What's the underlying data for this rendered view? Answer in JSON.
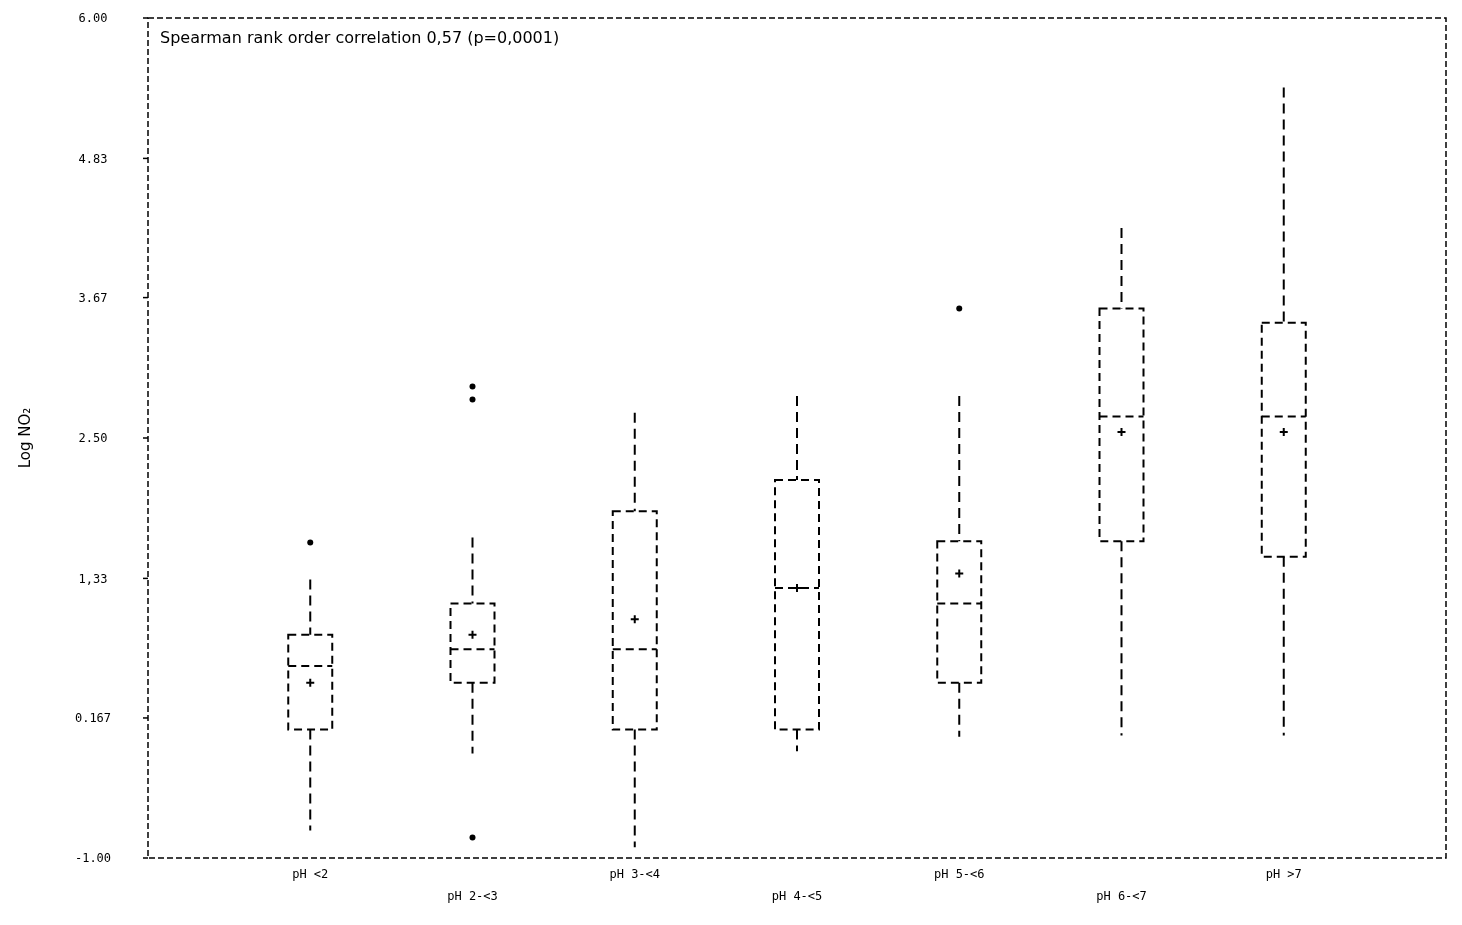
{
  "chart_data": {
    "type": "box",
    "ylabel": "Log NO₂",
    "annotations": [
      "Spearman rank order correlation 0,57 (p=0,0001)"
    ],
    "categories": [
      "pH <2",
      "pH 2-<3",
      "pH 3-<4",
      "pH 4-<5",
      "pH 5-<6",
      "pH 6-<7",
      "pH >7"
    ],
    "ylim": [
      -1,
      6
    ],
    "yticks": [
      {
        "value": -1,
        "label": "-1.00"
      },
      {
        "value": 0.167,
        "label": "0.167"
      },
      {
        "value": 1.33,
        "label": "1,33"
      },
      {
        "value": 2.5,
        "label": "2.50"
      },
      {
        "value": 3.67,
        "label": "3.67"
      },
      {
        "value": 4.83,
        "label": "4.83"
      },
      {
        "value": 6,
        "label": "6.00"
      }
    ],
    "boxes": [
      {
        "low": -0.77,
        "q1": 0.07,
        "median": 0.6,
        "q3": 0.86,
        "high": 1.32,
        "mean": 0.46,
        "outliers": [
          1.63
        ]
      },
      {
        "low": -0.13,
        "q1": 0.46,
        "median": 0.74,
        "q3": 1.12,
        "high": 1.67,
        "mean": 0.86,
        "outliers": [
          2.93,
          2.82,
          -0.83
        ]
      },
      {
        "low": -0.91,
        "q1": 0.07,
        "median": 0.74,
        "q3": 1.89,
        "high": 2.71,
        "mean": 0.99
      },
      {
        "low": -0.11,
        "q1": 0.07,
        "median": 1.25,
        "q3": 2.15,
        "high": 2.85,
        "mean": 1.25
      },
      {
        "low": 0.01,
        "q1": 0.46,
        "median": 1.12,
        "q3": 1.64,
        "high": 2.85,
        "mean": 1.37,
        "outliers": [
          3.58
        ]
      },
      {
        "low": 0.02,
        "q1": 1.64,
        "median": 2.68,
        "q3": 3.58,
        "high": 4.25,
        "mean": 2.55
      },
      {
        "low": 0.02,
        "q1": 1.51,
        "median": 2.68,
        "q3": 3.46,
        "high": 5.42,
        "mean": 2.55
      }
    ],
    "color": "#000000"
  }
}
